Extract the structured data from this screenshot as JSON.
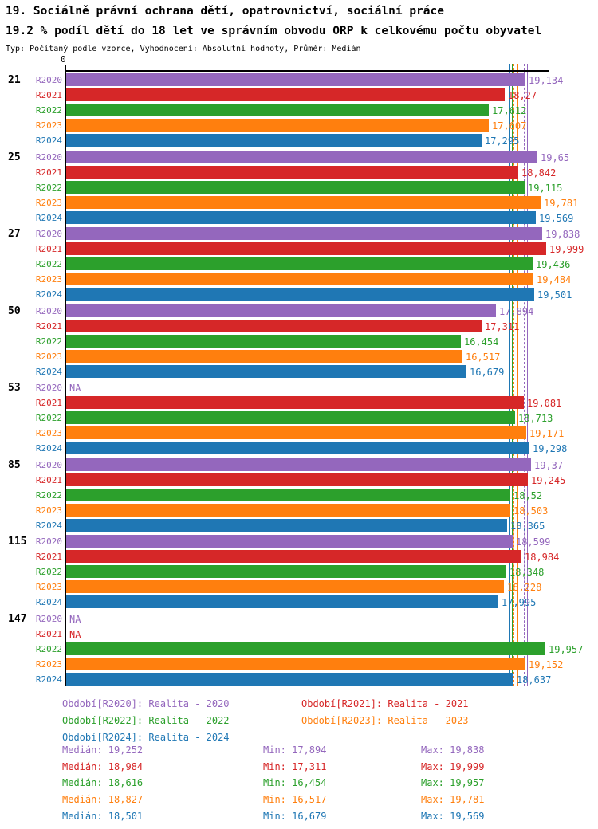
{
  "header": {
    "title": "19. Sociálně právní ochrana dětí, opatrovnictví, sociální práce",
    "subtitle": "19.2 % podíl dětí do 18 let ve správním obvodu ORP k celkovému počtu obyvatel",
    "meta": "Typ: Počítaný podle vzorce, Vyhodnocení: Absolutní hodnoty, Průměr: Medián"
  },
  "chart_data": {
    "type": "bar",
    "orientation": "horizontal",
    "xlim": [
      0,
      20.1
    ],
    "axis": {
      "zero_label": "0"
    },
    "series": [
      {
        "name": "R2020",
        "color": "#9467bd"
      },
      {
        "name": "R2021",
        "color": "#d62728"
      },
      {
        "name": "R2022",
        "color": "#2ca02c"
      },
      {
        "name": "R2023",
        "color": "#ff7f0e"
      },
      {
        "name": "R2024",
        "color": "#1f77b4"
      }
    ],
    "groups": [
      {
        "label": "21",
        "values": [
          19.134,
          18.27,
          17.612,
          17.607,
          17.295
        ],
        "displays": [
          "19,134",
          "18,27",
          "17,612",
          "17,607",
          "17,295"
        ]
      },
      {
        "label": "25",
        "values": [
          19.65,
          18.842,
          19.115,
          19.781,
          19.569
        ],
        "displays": [
          "19,65",
          "18,842",
          "19,115",
          "19,781",
          "19,569"
        ]
      },
      {
        "label": "27",
        "values": [
          19.838,
          19.999,
          19.436,
          19.484,
          19.501
        ],
        "displays": [
          "19,838",
          "19,999",
          "19,436",
          "19,484",
          "19,501"
        ]
      },
      {
        "label": "50",
        "values": [
          17.894,
          17.311,
          16.454,
          16.517,
          16.679
        ],
        "displays": [
          "17,894",
          "17,311",
          "16,454",
          "16,517",
          "16,679"
        ]
      },
      {
        "label": "53",
        "values": [
          null,
          19.081,
          18.713,
          19.171,
          19.298
        ],
        "displays": [
          "NA",
          "19,081",
          "18,713",
          "19,171",
          "19,298"
        ]
      },
      {
        "label": "85",
        "values": [
          19.37,
          19.245,
          18.52,
          18.503,
          18.365
        ],
        "displays": [
          "19,37",
          "19,245",
          "18,52",
          "18,503",
          "18,365"
        ]
      },
      {
        "label": "115",
        "values": [
          18.599,
          18.984,
          18.348,
          18.228,
          17.995
        ],
        "displays": [
          "18,599",
          "18,984",
          "18,348",
          "18,228",
          "17,995"
        ]
      },
      {
        "label": "147",
        "values": [
          null,
          null,
          19.957,
          19.152,
          18.637
        ],
        "displays": [
          "NA",
          "NA",
          "19,957",
          "19,152",
          "18,637"
        ]
      }
    ],
    "legend": [
      {
        "label": "Období[R2020]: Realita - 2020",
        "color": "#9467bd",
        "col": 0,
        "row": 0
      },
      {
        "label": "Období[R2021]: Realita - 2021",
        "color": "#d62728",
        "col": 1,
        "row": 0
      },
      {
        "label": "Období[R2022]: Realita - 2022",
        "color": "#2ca02c",
        "col": 0,
        "row": 1
      },
      {
        "label": "Období[R2023]: Realita - 2023",
        "color": "#ff7f0e",
        "col": 1,
        "row": 1
      },
      {
        "label": "Období[R2024]: Realita - 2024",
        "color": "#1f77b4",
        "col": 0,
        "row": 2
      }
    ],
    "stats": [
      {
        "color": "#9467bd",
        "median_label": "Medián: 19,252",
        "min_label": "Min: 17,894",
        "max_label": "Max: 19,838",
        "median": 19.252
      },
      {
        "color": "#d62728",
        "median_label": "Medián: 18,984",
        "min_label": "Min: 17,311",
        "max_label": "Max: 19,999",
        "median": 18.984
      },
      {
        "color": "#2ca02c",
        "median_label": "Medián: 18,616",
        "min_label": "Min: 16,454",
        "max_label": "Max: 19,957",
        "median": 18.616
      },
      {
        "color": "#ff7f0e",
        "median_label": "Medián: 18,827",
        "min_label": "Min: 16,517",
        "max_label": "Max: 19,781",
        "median": 18.827
      },
      {
        "color": "#1f77b4",
        "median_label": "Medián: 18,501",
        "min_label": "Min: 16,679",
        "max_label": "Max: 19,569",
        "median": 18.501
      }
    ]
  }
}
